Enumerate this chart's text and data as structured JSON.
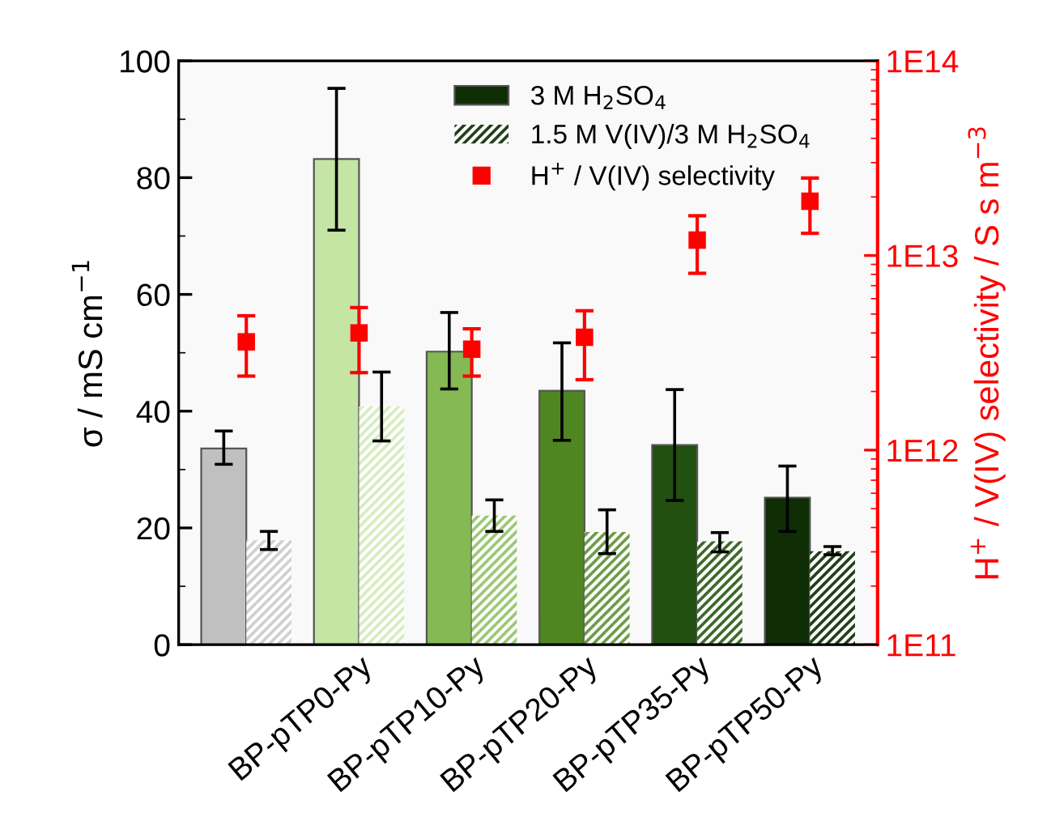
{
  "chart_data": {
    "type": "bar",
    "ylabel": "σ / mS cm$^{−1}$",
    "y2label": "H$^{+}$ / V(IV) selectivity / S s m$^{−3}$",
    "categories": [
      null,
      "BP-pTP0-Py",
      "BP-pTP10-Py",
      "BP-pTP20-Py",
      "BP-pTP35-Py",
      "BP-pTP50-Py"
    ],
    "series": [
      {
        "name": "3 M H$_{2}$SO$_{4}$",
        "colors": [
          "#c0c0c0",
          "#c5e5a5",
          "#84b954",
          "#4f8622",
          "#215010",
          "#0f2e06"
        ],
        "values": [
          33.6,
          83.2,
          50.2,
          43.5,
          34.2,
          25.2
        ],
        "errors": [
          [
            30.9,
            36.6
          ],
          [
            71.0,
            95.3
          ],
          [
            43.8,
            56.9
          ],
          [
            35.0,
            51.7
          ],
          [
            24.7,
            43.7
          ],
          [
            19.4,
            30.6
          ]
        ]
      },
      {
        "name": "1.5 M V(IV)/3 M H$_{2}$SO$_{4}$",
        "colors": [
          "#d0d0d0",
          "#d6edc0",
          "#9cc874",
          "#6e9c48",
          "#3d6a2c",
          "#23401a"
        ],
        "values": [
          17.9,
          40.8,
          22.1,
          19.3,
          17.7,
          16.0
        ],
        "errors": [
          [
            16.3,
            19.4
          ],
          [
            34.9,
            46.7
          ],
          [
            19.4,
            24.8
          ],
          [
            15.6,
            23.1
          ],
          [
            15.9,
            19.2
          ],
          [
            15.4,
            16.8
          ]
        ]
      },
      {
        "name": "H$^{+}$ / V(IV) selectivity",
        "type": "scatter",
        "axis": "y2",
        "color": "#ff0000",
        "marker": "square",
        "values": [
          3600000000000.0,
          4000000000000.0,
          3300000000000.0,
          3800000000000.0,
          12000000000000.0,
          19000000000000.0
        ],
        "errors": [
          [
            2400000000000.0,
            4900000000000.0
          ],
          [
            2500000000000.0,
            5400000000000.0
          ],
          [
            2400000000000.0,
            4200000000000.0
          ],
          [
            2300000000000.0,
            5200000000000.0
          ],
          [
            8100000000000.0,
            16000000000000.0
          ],
          [
            13000000000000.0,
            25000000000000.0
          ]
        ]
      }
    ],
    "ylim": [
      0,
      100
    ],
    "yticks": [
      0,
      20,
      40,
      60,
      80,
      100
    ],
    "y2lim": [
      100000000000.0,
      100000000000000.0
    ],
    "y2ticks": [
      {
        "value": 100000000000.0,
        "label": "1E11"
      },
      {
        "value": 1000000000000.0,
        "label": "1E12"
      },
      {
        "value": 10000000000000.0,
        "label": "1E13"
      },
      {
        "value": 100000000000000.0,
        "label": "1E14"
      }
    ],
    "log": "y2",
    "legend": "top",
    "grid": false
  }
}
